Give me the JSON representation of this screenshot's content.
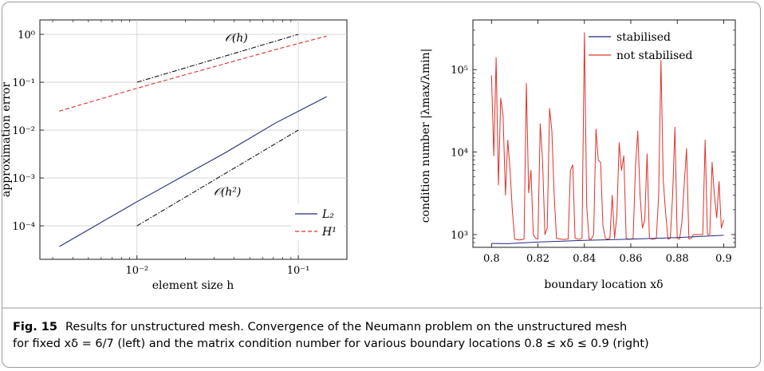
{
  "figure": {
    "label": "Fig. 15",
    "caption_line1": "Results for unstructured mesh. Convergence of the Neumann problem on the unstructured mesh",
    "caption_line2": "for fixed xδ = 6/7 (left) and the matrix condition number for various boundary locations 0.8 ≤ xδ ≤ 0.9 (right)"
  },
  "chart_data": [
    {
      "type": "line",
      "scale": "log-log",
      "xlabel": "element size h",
      "ylabel": "approximation error",
      "xlim": [
        0.0025,
        0.2
      ],
      "ylim": [
        2e-05,
        2.0
      ],
      "xticks": [
        {
          "value": 0.01,
          "label": "10⁻²"
        },
        {
          "value": 0.1,
          "label": "10⁻¹"
        }
      ],
      "yticks": [
        {
          "value": 0.0001,
          "label": "10⁻⁴"
        },
        {
          "value": 0.001,
          "label": "10⁻³"
        },
        {
          "value": 0.01,
          "label": "10⁻²"
        },
        {
          "value": 0.1,
          "label": "10⁻¹"
        },
        {
          "value": 1,
          "label": "10⁰"
        }
      ],
      "grid": true,
      "legend_position": "bottom-right",
      "series": [
        {
          "name": "L₂",
          "color": "#1f2a7a",
          "dash": "solid",
          "x": [
            0.0033,
            0.01,
            0.036,
            0.072,
            0.15
          ],
          "y": [
            3.7e-05,
            0.00032,
            0.0035,
            0.014,
            0.05
          ]
        },
        {
          "name": "H¹",
          "color": "#e0302a",
          "dash": "dashed",
          "x": [
            0.0033,
            0.01,
            0.036,
            0.072,
            0.15
          ],
          "y": [
            0.025,
            0.075,
            0.25,
            0.48,
            0.92
          ]
        }
      ],
      "reference_lines": [
        {
          "label": "𝒪(h)",
          "x": [
            0.01,
            0.1
          ],
          "y": [
            0.1,
            1.0
          ]
        },
        {
          "label": "𝒪(h²)",
          "x": [
            0.01,
            0.1
          ],
          "y": [
            0.0001,
            0.01
          ]
        }
      ]
    },
    {
      "type": "line",
      "scale": "log-y",
      "xlabel": "boundary location xδ",
      "ylabel": "condition number |λmax/λmin|",
      "xlim": [
        0.792,
        0.905
      ],
      "ylim": [
        700,
        400000
      ],
      "xticks": [
        {
          "value": 0.8,
          "label": "0.8"
        },
        {
          "value": 0.82,
          "label": "0.82"
        },
        {
          "value": 0.84,
          "label": "0.84"
        },
        {
          "value": 0.86,
          "label": "0.86"
        },
        {
          "value": 0.88,
          "label": "0.88"
        },
        {
          "value": 0.9,
          "label": "0.9"
        }
      ],
      "yticks": [
        {
          "value": 1000,
          "label": "10³"
        },
        {
          "value": 10000,
          "label": "10⁴"
        },
        {
          "value": 100000,
          "label": "10⁵"
        }
      ],
      "grid": false,
      "legend_position": "top-right",
      "series": [
        {
          "name": "stabilised",
          "color": "#1f2a7a",
          "x": [
            0.8,
            0.807,
            0.82,
            0.84,
            0.86,
            0.88,
            0.9
          ],
          "y": [
            780,
            775,
            810,
            850,
            880,
            920,
            980
          ]
        },
        {
          "name": "not stabilised",
          "color": "#e0302a",
          "x": [
            0.8,
            0.801,
            0.802,
            0.803,
            0.804,
            0.805,
            0.806,
            0.807,
            0.808,
            0.809,
            0.81,
            0.811,
            0.812,
            0.813,
            0.814,
            0.815,
            0.816,
            0.817,
            0.818,
            0.819,
            0.82,
            0.821,
            0.822,
            0.823,
            0.824,
            0.825,
            0.826,
            0.827,
            0.828,
            0.829,
            0.83,
            0.831,
            0.832,
            0.833,
            0.834,
            0.835,
            0.836,
            0.837,
            0.838,
            0.839,
            0.84,
            0.841,
            0.842,
            0.843,
            0.844,
            0.845,
            0.846,
            0.847,
            0.848,
            0.849,
            0.85,
            0.851,
            0.852,
            0.853,
            0.854,
            0.855,
            0.856,
            0.857,
            0.858,
            0.859,
            0.86,
            0.861,
            0.862,
            0.863,
            0.864,
            0.865,
            0.866,
            0.867,
            0.868,
            0.869,
            0.87,
            0.871,
            0.872,
            0.873,
            0.874,
            0.875,
            0.876,
            0.877,
            0.878,
            0.879,
            0.88,
            0.881,
            0.882,
            0.883,
            0.884,
            0.885,
            0.886,
            0.887,
            0.888,
            0.889,
            0.89,
            0.891,
            0.892,
            0.893,
            0.894,
            0.895,
            0.896,
            0.897,
            0.898,
            0.899,
            0.9
          ],
          "y": [
            85000,
            9000,
            140000,
            4000,
            45000,
            28000,
            3000,
            14000,
            6000,
            1900,
            880,
            870,
            860,
            870,
            880,
            68000,
            3200,
            6000,
            1000,
            900,
            880,
            22000,
            8000,
            1000,
            1200,
            34000,
            18000,
            3000,
            900,
            890,
            880,
            870,
            880,
            880,
            6000,
            7000,
            900,
            880,
            880,
            900,
            280000,
            2200,
            880,
            880,
            1000,
            19000,
            8000,
            7500,
            1300,
            900,
            880,
            900,
            3000,
            900,
            1700,
            13000,
            6000,
            9000,
            900,
            880,
            880,
            900,
            6500,
            18000,
            3000,
            1200,
            1500,
            9500,
            900,
            880,
            880,
            900,
            3000,
            130000,
            4500,
            1800,
            880,
            900,
            3000,
            20000,
            900,
            880,
            1400,
            4000,
            11000,
            880,
            900,
            1000,
            1000,
            1000,
            1000,
            1000,
            14000,
            1000,
            1000,
            7500,
            3000,
            1600,
            4400,
            1200,
            1500
          ]
        }
      ]
    }
  ]
}
